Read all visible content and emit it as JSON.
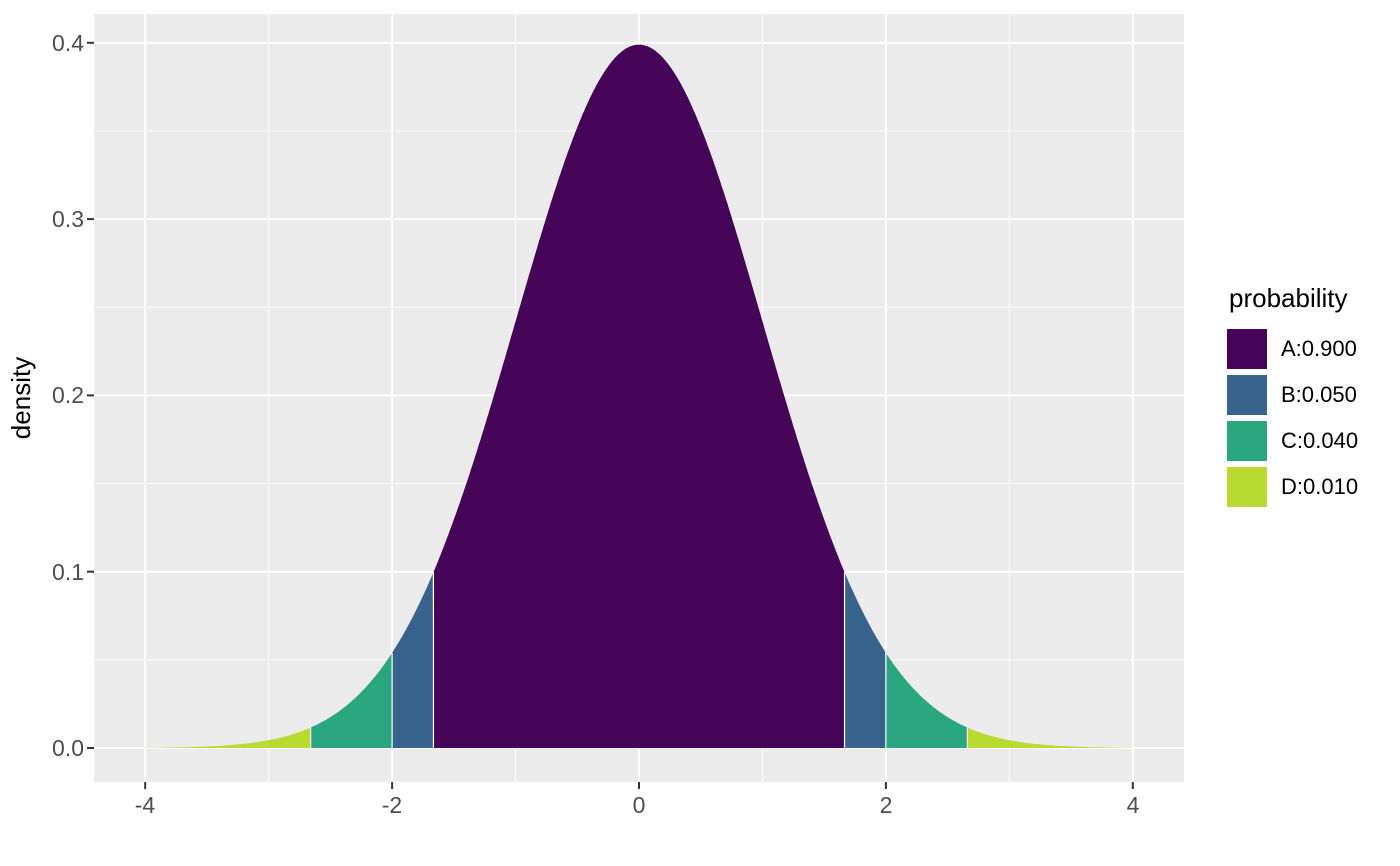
{
  "figure": {
    "background": "#ffffff",
    "panel_bg": "#ebebeb",
    "grid_color": "#ffffff",
    "tick_color": "#333333",
    "tick_label_color": "#4d4d4d"
  },
  "chart_data": {
    "type": "area",
    "title": "",
    "xlabel": "",
    "ylabel": "density",
    "description": "Standard normal probability density curve (mean 0, sd 1, peak density 0.399) shaded into symmetric probability bands",
    "x_ticks": [
      "-4",
      "-2",
      "0",
      "2",
      "4"
    ],
    "y_ticks": [
      "0.0",
      "0.1",
      "0.2",
      "0.3",
      "0.4"
    ],
    "x_tick_values": [
      -4,
      -2,
      0,
      2,
      4
    ],
    "y_tick_values": [
      0,
      0.1,
      0.2,
      0.3,
      0.4
    ],
    "x_minor_values": [
      -3,
      -1,
      1,
      3
    ],
    "y_minor_values": [
      0.05,
      0.15,
      0.25,
      0.35
    ],
    "xlim": [
      -4.42,
      4.42
    ],
    "ylim": [
      -0.019,
      0.416
    ],
    "curve_domain": [
      -4,
      4
    ],
    "grid": "on",
    "legend_position": "right",
    "bands": {
      "A": {
        "label": "A:0.900",
        "probability": 0.9,
        "color": "#450458"
      },
      "B": {
        "label": "B:0.050",
        "probability": 0.05,
        "color": "#38638D"
      },
      "C": {
        "label": "C:0.040",
        "probability": 0.04,
        "color": "#2AA77E"
      },
      "D": {
        "label": "D:0.010",
        "probability": 0.01,
        "color": "#B9DA30"
      }
    },
    "segments": [
      {
        "band": "D",
        "from": -4.0,
        "to": -2.66
      },
      {
        "band": "C",
        "from": -2.66,
        "to": -2.0
      },
      {
        "band": "B",
        "from": -2.0,
        "to": -1.665
      },
      {
        "band": "A",
        "from": -1.665,
        "to": 1.665
      },
      {
        "band": "B",
        "from": 1.665,
        "to": 2.0
      },
      {
        "band": "C",
        "from": 2.0,
        "to": 2.66
      },
      {
        "band": "D",
        "from": 2.66,
        "to": 4.0
      }
    ]
  },
  "legend": {
    "title": "probability",
    "entries": [
      {
        "label": "A:0.900",
        "color": "#450458"
      },
      {
        "label": "B:0.050",
        "color": "#38638D"
      },
      {
        "label": "C:0.040",
        "color": "#2AA77E"
      },
      {
        "label": "D:0.010",
        "color": "#B9DA30"
      }
    ]
  }
}
